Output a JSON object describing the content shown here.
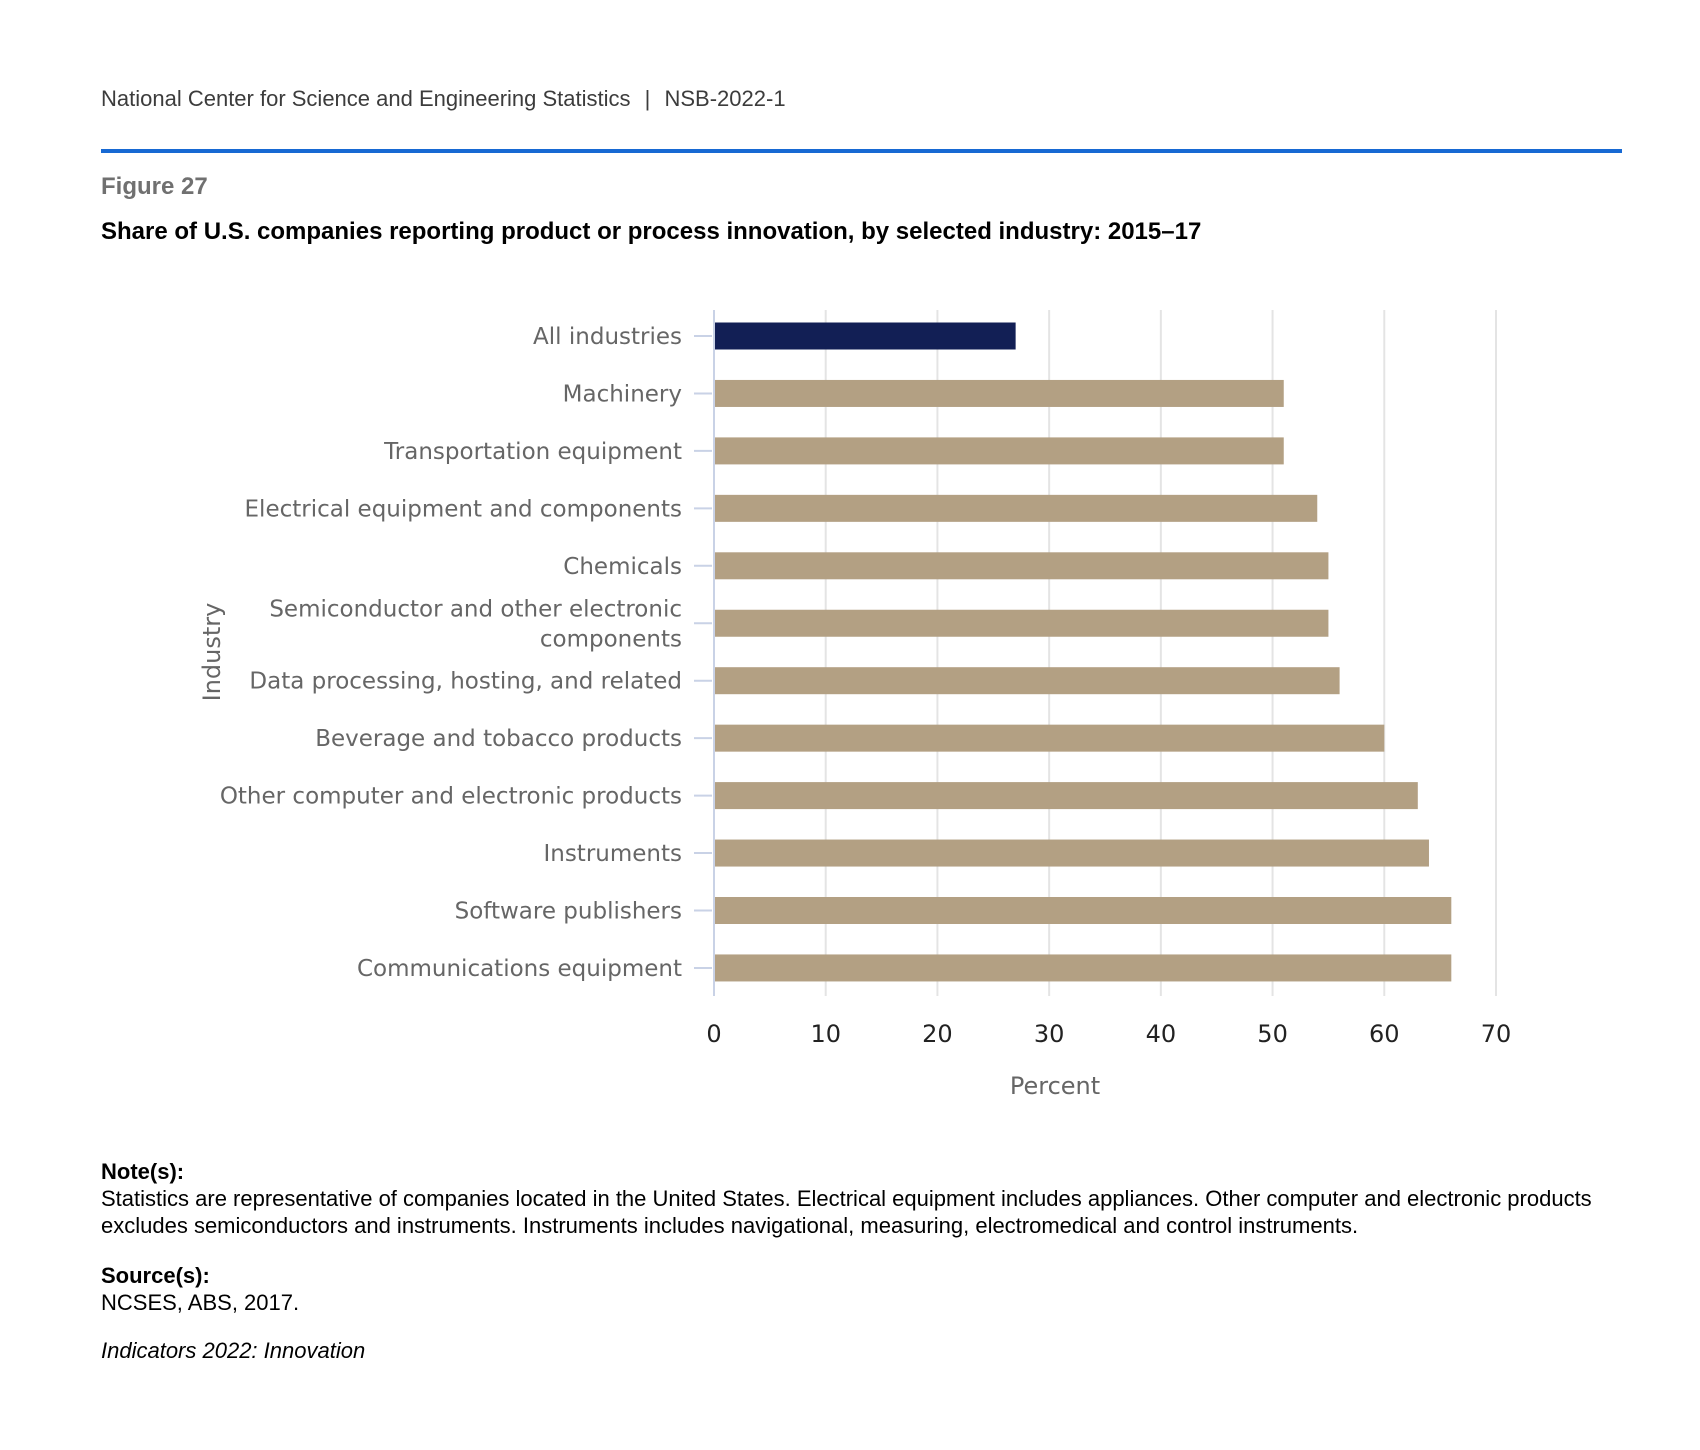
{
  "header": {
    "org": "National Center for Science and Engineering Statistics",
    "separator": "|",
    "report": "NSB-2022-1"
  },
  "figure": {
    "label": "Figure 27",
    "title": "Share of U.S. companies reporting product or process innovation, by selected industry: 2015–17"
  },
  "colors": {
    "accent_rule": "#1769d3",
    "highlight_bar": "#121f55",
    "bar": "#b3a083",
    "grid": "#e4e4e4"
  },
  "chart_data": {
    "type": "bar",
    "orientation": "horizontal",
    "title": "Share of U.S. companies reporting product or process innovation, by selected industry: 2015–17",
    "xlabel": "Percent",
    "ylabel": "Industry",
    "xlim": [
      0,
      70
    ],
    "xticks": [
      0,
      10,
      20,
      30,
      40,
      50,
      60,
      70
    ],
    "grid": true,
    "categories": [
      "All industries",
      "Machinery",
      "Transportation equipment",
      "Electrical equipment and components",
      "Chemicals",
      "Semiconductor and other electronic components",
      "Data processing, hosting, and related",
      "Beverage and tobacco products",
      "Other computer and electronic products",
      "Instruments",
      "Software publishers",
      "Communications equipment"
    ],
    "values": [
      27,
      51,
      51,
      54,
      55,
      55,
      56,
      60,
      63,
      64,
      66,
      66
    ],
    "highlight_category": "All industries"
  },
  "notes": {
    "heading": "Note(s):",
    "text": "Statistics are representative of companies located in the United States. Electrical equipment includes appliances. Other computer and electronic products excludes semiconductors and instruments. Instruments includes navigational, measuring, electromedical and control instruments."
  },
  "source": {
    "heading": "Source(s):",
    "text": "NCSES, ABS, 2017."
  },
  "indicators": "Indicators 2022: Innovation"
}
